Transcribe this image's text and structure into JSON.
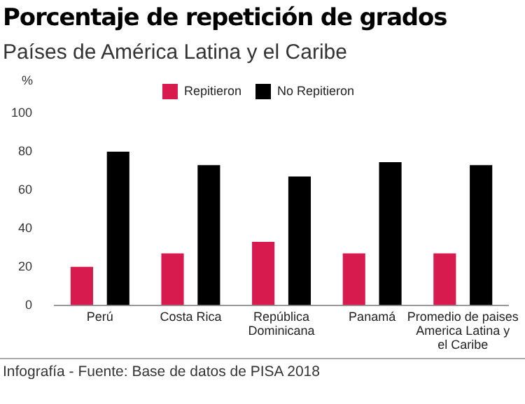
{
  "chart_data": {
    "type": "bar",
    "title": "Porcentaje de repetición de grados",
    "subtitle": "Países de América Latina y el Caribe",
    "ylabel": "%",
    "categories": [
      "Perú",
      "Costa Rica",
      "República Dominicana",
      "Panamá",
      "Promedio de paises America Latina y el Caribe"
    ],
    "series": [
      {
        "name": "Repitieron",
        "color": "#d81b4f",
        "values": [
          20,
          27,
          33,
          27,
          27
        ]
      },
      {
        "name": "No Repitieron",
        "color": "#000000",
        "values": [
          80,
          73,
          67,
          74.5,
          73
        ]
      }
    ],
    "ylim": [
      0,
      100
    ],
    "yticks": [
      0,
      20,
      40,
      60,
      80,
      100
    ],
    "grid": false,
    "legend": "top",
    "annotations": [
      "Infografía - Fuente: Base de datos de PISA 2018"
    ]
  }
}
